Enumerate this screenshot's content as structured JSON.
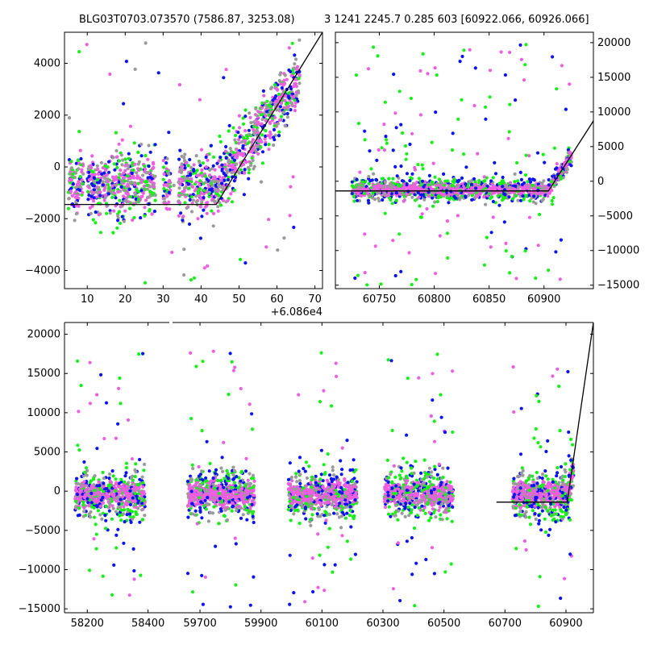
{
  "figure": {
    "title_left": "BLG03T0703.073570 (7586.87, 3253.08)",
    "title_right": "3 1241 2245.7 0.285 603 [60922.066, 60926.066]"
  },
  "colors": {
    "blue": "#0a14f0",
    "green": "#16f016",
    "pink": "#ee5ee0",
    "gray": "#9a9a9a",
    "fit_line": "#000000"
  },
  "chart_data": [
    {
      "name": "zoom-panel",
      "type": "scatter",
      "xlim": [
        4,
        72
      ],
      "ylim": [
        -4700,
        5200
      ],
      "x_offset_label": "+6.086e4",
      "x_ticks": [
        10,
        20,
        30,
        40,
        50,
        60,
        70
      ],
      "y_ticks": [
        -4000,
        -2000,
        0,
        2000,
        4000
      ],
      "y_tick_labels": [
        "−4000",
        "−2000",
        "0",
        "2000",
        "4000"
      ],
      "model_line": {
        "x": [
          4,
          44,
          72
        ],
        "y": [
          -1450,
          -1450,
          5200
        ]
      },
      "scatter_summary": "dense band near -1000 for x<45, rising linearly after ~44"
    },
    {
      "name": "season-panel",
      "type": "scatter",
      "xlim": [
        60710,
        60945
      ],
      "ylim": [
        -15500,
        21500
      ],
      "x_ticks": [
        60750,
        60800,
        60850,
        60900
      ],
      "y_ticks": [
        -15000,
        -10000,
        -5000,
        0,
        5000,
        10000,
        15000,
        20000
      ],
      "y_tick_labels": [
        "−15000",
        "−10000",
        "−5000",
        "0",
        "5000",
        "10000",
        "15000",
        "20000"
      ],
      "model_line": {
        "x": [
          60710,
          60904,
          60945
        ],
        "y": [
          -1400,
          -1400,
          8700
        ]
      },
      "data_range": [
        60725,
        60925
      ]
    },
    {
      "name": "full-panel",
      "type": "scatter",
      "ylim": [
        -15500,
        21500
      ],
      "y_ticks": [
        -15000,
        -10000,
        -5000,
        0,
        5000,
        10000,
        15000,
        20000
      ],
      "y_tick_labels": [
        "−15000",
        "−10000",
        "−5000",
        "0",
        "5000",
        "10000",
        "15000",
        "20000"
      ],
      "segments": [
        {
          "xlim": [
            58125,
            58470
          ],
          "x_ticks": [
            58200,
            58400
          ]
        },
        {
          "xlim": [
            59610,
            60990
          ],
          "x_ticks": [
            59700,
            59900,
            60100,
            60300,
            60500,
            60700,
            60900
          ]
        }
      ],
      "seasons": [
        {
          "x": [
            58160,
            58390
          ]
        },
        {
          "x": [
            59660,
            59880
          ]
        },
        {
          "x": [
            59990,
            60215
          ]
        },
        {
          "x": [
            60305,
            60530
          ]
        },
        {
          "x": [
            60725,
            60925
          ]
        }
      ],
      "model_line": {
        "x": [
          60672,
          60904,
          60990
        ],
        "y": [
          -1400,
          -1400,
          21500
        ]
      }
    }
  ]
}
